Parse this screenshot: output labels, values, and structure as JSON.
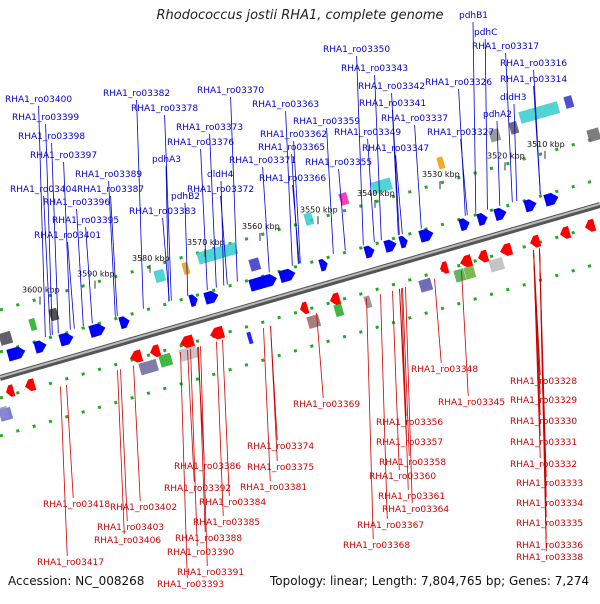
{
  "title": "Rhodococcus jostii RHA1, complete genome",
  "footer": {
    "accession": "Accession: NC_008268",
    "topology": "Topology: linear; Length: 7,804,765 bp; Genes: 7,274"
  },
  "colors": {
    "upper_label": "#0000cc",
    "lower_label": "#cc0000",
    "forward_gene": "#0000ff",
    "reverse_gene": "#ff0000",
    "strand_dots": "#22aa22",
    "axis": "#888888"
  },
  "scale_ticks": [
    "3510 kbp",
    "3520 kbp",
    "3530 kbp",
    "3540 kbp",
    "3550 kbp",
    "3560 kbp",
    "3570 kbp",
    "3580 kbp",
    "3590 kbp",
    "3600 kbp"
  ],
  "upper_labels": [
    "pdhB1",
    "pdhC",
    "RHA1_ro03317",
    "RHA1_ro03316",
    "RHA1_ro03350",
    "RHA1_ro03343",
    "RHA1_ro03314",
    "RHA1_ro03326",
    "RHA1_ro03342",
    "dldH3",
    "RHA1_ro03370",
    "RHA1_ro03341",
    "pdhA2",
    "RHA1_ro03363",
    "RHA1_ro03337",
    "RHA1_ro03382",
    "RHA1_ro03400",
    "RHA1_ro03378",
    "RHA1_ro03359",
    "RHA1_ro03327",
    "RHA1_ro03349",
    "RHA1_ro03399",
    "RHA1_ro03373",
    "RHA1_ro03362",
    "RHA1_ro03398",
    "RHA1_ro03376",
    "RHA1_ro03365",
    "RHA1_ro03347",
    "RHA1_ro03397",
    "pdhA3",
    "RHA1_ro03371",
    "RHA1_ro03355",
    "dldH4",
    "RHA1_ro03389",
    "RHA1_ro03366",
    "RHA1_ro03404",
    "RHA1_ro03387",
    "pdhB2",
    "RHA1_ro03372",
    "RHA1_ro03396",
    "RHA1_ro03383",
    "RHA1_ro03395",
    "RHA1_ro03401"
  ],
  "lower_labels": [
    "RHA1_ro03348",
    "RHA1_ro03328",
    "RHA1_ro03345",
    "RHA1_ro03329",
    "RHA1_ro03369",
    "RHA1_ro03356",
    "RHA1_ro03330",
    "RHA1_ro03357",
    "RHA1_ro03331",
    "RHA1_ro03374",
    "RHA1_ro03358",
    "RHA1_ro03332",
    "RHA1_ro03386",
    "RHA1_ro03375",
    "RHA1_ro03360",
    "RHA1_ro03333",
    "RHA1_ro03392",
    "RHA1_ro03381",
    "RHA1_ro03361",
    "RHA1_ro03334",
    "RHA1_ro03384",
    "RHA1_ro03418",
    "RHA1_ro03402",
    "RHA1_ro03364",
    "RHA1_ro03385",
    "RHA1_ro03367",
    "RHA1_ro03335",
    "RHA1_ro03403",
    "RHA1_ro03388",
    "RHA1_ro03406",
    "RHA1_ro03368",
    "RHA1_ro03336",
    "RHA1_ro03390",
    "RHA1_ro03338",
    "RHA1_ro03417",
    "RHA1_ro03391",
    "RHA1_ro03393"
  ]
}
